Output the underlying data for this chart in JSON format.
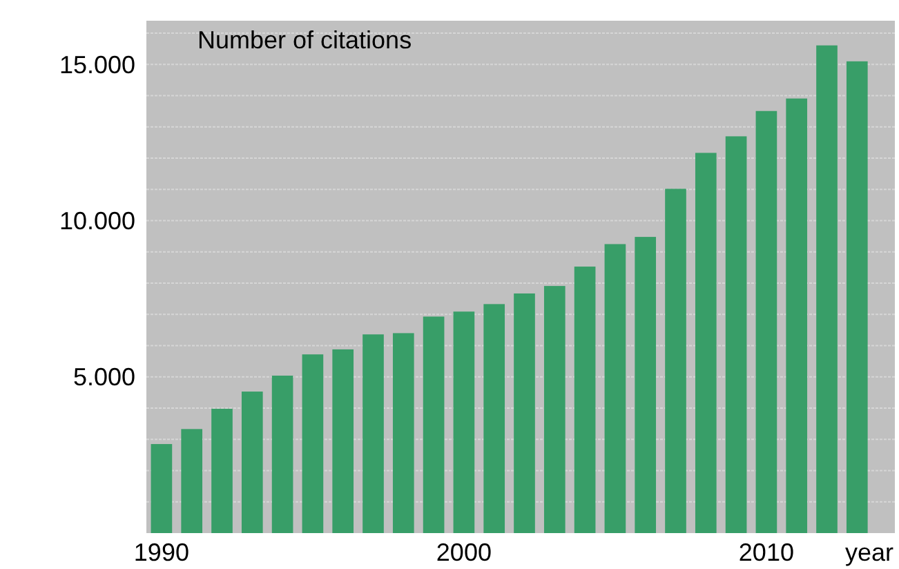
{
  "chart_data": {
    "type": "bar",
    "title": "Number of citations",
    "xlabel": "year",
    "categories": [
      "1990",
      null,
      null,
      null,
      null,
      null,
      null,
      null,
      null,
      null,
      "2000",
      null,
      null,
      null,
      null,
      null,
      null,
      null,
      null,
      null,
      "2010",
      null,
      null,
      null
    ],
    "values": [
      2850,
      3330,
      3980,
      4530,
      5040,
      5720,
      5880,
      6360,
      6400,
      6930,
      7090,
      7330,
      7670,
      7910,
      8530,
      9250,
      9480,
      11020,
      12170,
      12700,
      13510,
      13910,
      15610,
      15100
    ],
    "color": "#389e68",
    "ylim": [
      0,
      16400
    ],
    "yticks": [
      {
        "value": 1000,
        "label": null
      },
      {
        "value": 2000,
        "label": null
      },
      {
        "value": 3000,
        "label": null
      },
      {
        "value": 4000,
        "label": null
      },
      {
        "value": 5000,
        "label": "5.000"
      },
      {
        "value": 6000,
        "label": null
      },
      {
        "value": 7000,
        "label": null
      },
      {
        "value": 8000,
        "label": null
      },
      {
        "value": 9000,
        "label": null
      },
      {
        "value": 10000,
        "label": "10.000"
      },
      {
        "value": 11000,
        "label": null
      },
      {
        "value": 12000,
        "label": null
      },
      {
        "value": 13000,
        "label": null
      },
      {
        "value": 14000,
        "label": null
      },
      {
        "value": 15000,
        "label": "15.000"
      },
      {
        "value": 16000,
        "label": null
      }
    ],
    "grid": "y"
  }
}
